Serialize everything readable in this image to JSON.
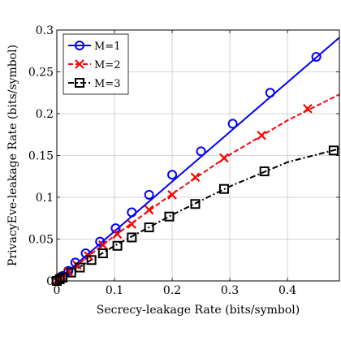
{
  "chart_data": {
    "type": "line",
    "xlabel": "Secrecy-leakage Rate (bits/symbol)",
    "ylabel": "PrivacyEve-leakage Rate (bits/symbol)",
    "xlim": [
      0,
      0.49
    ],
    "ylim": [
      0,
      0.3
    ],
    "xticks": [
      0,
      0.1,
      0.2,
      0.3,
      0.4
    ],
    "xtick_labels": [
      "0",
      "0.1",
      "0.2",
      "0.3",
      "0.4"
    ],
    "yticks": [
      0,
      0.05,
      0.1,
      0.15,
      0.2,
      0.25,
      0.3
    ],
    "ytick_labels": [
      "0",
      "0.05",
      "0.1",
      "0.15",
      "0.2",
      "0.25",
      "0.3"
    ],
    "grid": true,
    "legend_position": "top-left",
    "series": [
      {
        "name": "M=1",
        "color": "#0000ff",
        "line_style": "solid",
        "marker": "circle",
        "line_x": [
          0,
          0.49
        ],
        "line_y": [
          0,
          0.291
        ],
        "marker_x": [
          0,
          0.005,
          0.01,
          0.02,
          0.032,
          0.05,
          0.075,
          0.102,
          0.13,
          0.16,
          0.2,
          0.25,
          0.305,
          0.37,
          0.45
        ],
        "marker_y": [
          0,
          0.003,
          0.006,
          0.012,
          0.022,
          0.033,
          0.047,
          0.063,
          0.082,
          0.103,
          0.127,
          0.155,
          0.188,
          0.225,
          0.268
        ]
      },
      {
        "name": "M=2",
        "color": "#ff0000",
        "line_style": "dashed",
        "marker": "x",
        "line_x": [
          0,
          0.1,
          0.2,
          0.3,
          0.4,
          0.49
        ],
        "line_y": [
          0,
          0.054,
          0.104,
          0.151,
          0.192,
          0.223
        ],
        "marker_x": [
          0,
          0.005,
          0.01,
          0.02,
          0.035,
          0.055,
          0.08,
          0.105,
          0.13,
          0.16,
          0.2,
          0.24,
          0.29,
          0.355,
          0.435
        ],
        "marker_y": [
          0,
          0.003,
          0.005,
          0.011,
          0.019,
          0.03,
          0.043,
          0.056,
          0.068,
          0.085,
          0.103,
          0.124,
          0.147,
          0.174,
          0.206
        ]
      },
      {
        "name": "M=3",
        "color": "#000000",
        "line_style": "dashdot",
        "marker": "square",
        "line_x": [
          0,
          0.1,
          0.2,
          0.3,
          0.4,
          0.49
        ],
        "line_y": [
          0,
          0.042,
          0.079,
          0.113,
          0.142,
          0.158
        ],
        "marker_x": [
          0,
          0.005,
          0.01,
          0.025,
          0.04,
          0.06,
          0.08,
          0.105,
          0.13,
          0.16,
          0.195,
          0.24,
          0.29,
          0.36,
          0.48
        ],
        "marker_y": [
          0,
          0.002,
          0.004,
          0.01,
          0.016,
          0.025,
          0.033,
          0.042,
          0.052,
          0.064,
          0.077,
          0.092,
          0.11,
          0.131,
          0.156
        ]
      }
    ]
  }
}
